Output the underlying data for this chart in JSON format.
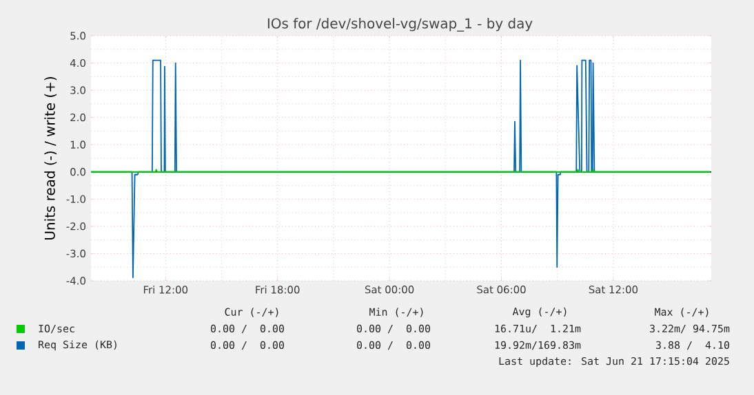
{
  "chart_data": {
    "type": "line",
    "title": "IOs for /dev/shovel-vg/swap_1 - by day",
    "ylabel": "Units read (-) / write (+)",
    "xlim": [
      "2025-06-20T08:00",
      "2025-06-21T17:15"
    ],
    "ylim": [
      -4,
      5
    ],
    "xticks": [
      {
        "value": "2025-06-20T12:00",
        "label": "Fri 12:00"
      },
      {
        "value": "2025-06-20T18:00",
        "label": "Fri 18:00"
      },
      {
        "value": "2025-06-21T00:00",
        "label": "Sat 00:00"
      },
      {
        "value": "2025-06-21T06:00",
        "label": "Sat 06:00"
      },
      {
        "value": "2025-06-21T12:00",
        "label": "Sat 12:00"
      }
    ],
    "yticks": [
      {
        "value": -4,
        "label": "-4.0"
      },
      {
        "value": -3,
        "label": "-3.0"
      },
      {
        "value": -2,
        "label": "-2.0"
      },
      {
        "value": -1,
        "label": "-1.0"
      },
      {
        "value": 0,
        "label": "0.0"
      },
      {
        "value": 1,
        "label": "1.0"
      },
      {
        "value": 2,
        "label": "2.0"
      },
      {
        "value": 3,
        "label": "3.0"
      },
      {
        "value": 4,
        "label": "4.0"
      },
      {
        "value": 5,
        "label": "5.0"
      }
    ],
    "grid": true,
    "legend": "bottom",
    "marker": "none",
    "line_style": "solid",
    "ref_lines": [
      {
        "axis": "y",
        "value": 0,
        "color": "#000000"
      }
    ],
    "series": [
      {
        "name": "IO/sec",
        "color": "#00cc00",
        "x": [
          "2025-06-20T08:00",
          "2025-06-20T11:27",
          "2025-06-20T11:30",
          "2025-06-20T11:33",
          "2025-06-21T10:03",
          "2025-06-21T10:06",
          "2025-06-21T10:09",
          "2025-06-21T10:53",
          "2025-06-21T10:55",
          "2025-06-21T10:58",
          "2025-06-21T17:12"
        ],
        "values": [
          0,
          0,
          0.09,
          0,
          0,
          0.09,
          0,
          0,
          0.09,
          0,
          0
        ]
      },
      {
        "name": "Req Size (KB)",
        "color": "#0066b3",
        "x": [
          "2025-06-20T08:00",
          "2025-06-20T10:12",
          "2025-06-20T10:15",
          "2025-06-20T10:21",
          "2025-06-20T10:30",
          "2025-06-20T10:33",
          "2025-06-20T11:17",
          "2025-06-20T11:19",
          "2025-06-20T11:44",
          "2025-06-20T11:46",
          "2025-06-20T11:56",
          "2025-06-20T11:57",
          "2025-06-20T11:59",
          "2025-06-20T12:30",
          "2025-06-20T12:32",
          "2025-06-20T12:35",
          "2025-06-21T06:41",
          "2025-06-21T06:43",
          "2025-06-21T06:46",
          "2025-06-21T06:59",
          "2025-06-21T07:01",
          "2025-06-21T07:04",
          "2025-06-21T08:57",
          "2025-06-21T08:59",
          "2025-06-21T09:02",
          "2025-06-21T09:09",
          "2025-06-21T09:11",
          "2025-06-21T10:01",
          "2025-06-21T10:03",
          "2025-06-21T10:12",
          "2025-06-21T10:13",
          "2025-06-21T10:18",
          "2025-06-21T10:19",
          "2025-06-21T10:31",
          "2025-06-21T10:35",
          "2025-06-21T10:41",
          "2025-06-21T10:43",
          "2025-06-21T10:48",
          "2025-06-21T10:50",
          "2025-06-21T10:53",
          "2025-06-21T10:55",
          "2025-06-21T10:59",
          "2025-06-21T17:12"
        ],
        "values": [
          0,
          0,
          -3.88,
          -0.1,
          -0.1,
          0,
          0,
          4.1,
          4.1,
          0,
          0,
          3.87,
          0,
          0,
          4.0,
          0,
          0,
          1.85,
          0,
          0,
          4.1,
          0,
          0,
          -3.5,
          -0.1,
          -0.1,
          0,
          0,
          3.9,
          0.1,
          0,
          0,
          4.1,
          4.1,
          0,
          0,
          4.1,
          4.1,
          0,
          0,
          4.0,
          0,
          0
        ]
      }
    ],
    "annotations": [
      "Cur (-/+)",
      "Min (-/+)",
      "Avg (-/+)",
      "Max (-/+)",
      "0.00 /  0.00",
      "0.00 /  0.00",
      "16.71u/  1.21m",
      "3.22m/ 94.75m",
      "0.00 /  0.00",
      "0.00 /  0.00",
      "19.92m/169.83m",
      "3.88 /  4.10",
      "Last update: Sat Jun 21 17:15:04 2025"
    ]
  }
}
